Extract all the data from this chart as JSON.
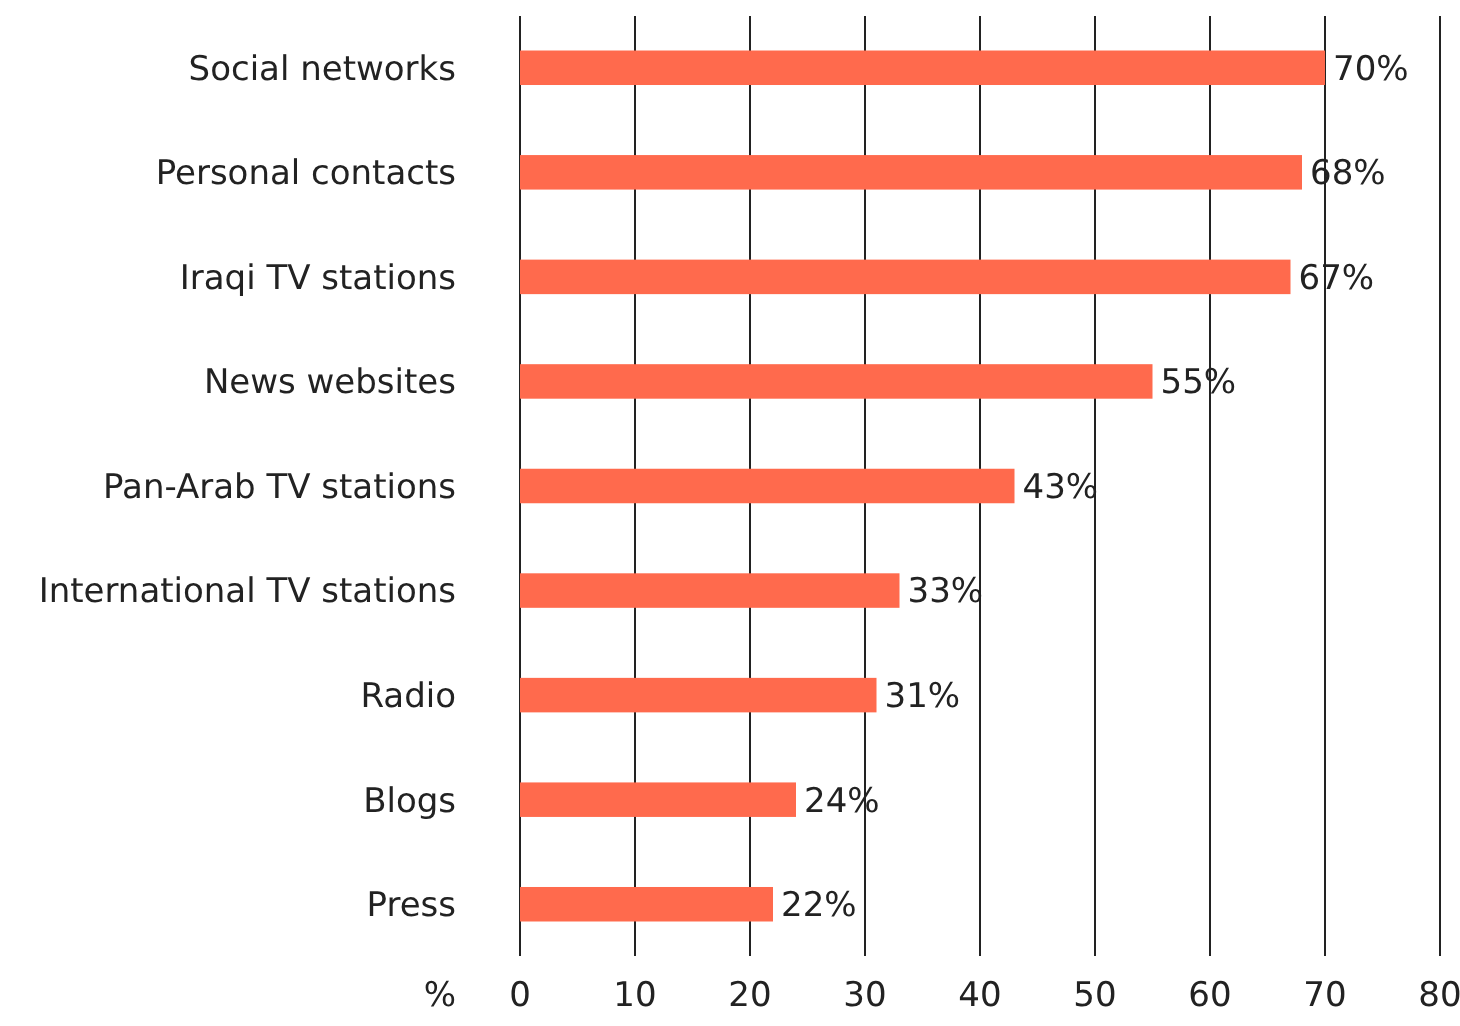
{
  "chart_data": {
    "type": "bar",
    "orientation": "horizontal",
    "xlabel": "%",
    "categories": [
      "Social networks",
      "Personal contacts",
      "Iraqi TV stations",
      "News websites",
      "Pan-Arab TV stations",
      "International TV stations",
      "Radio",
      "Blogs",
      "Press"
    ],
    "values": [
      70,
      68,
      67,
      55,
      43,
      33,
      31,
      24,
      22
    ],
    "value_labels": [
      "70%",
      "68%",
      "67%",
      "55%",
      "43%",
      "33%",
      "31%",
      "24%",
      "22%"
    ],
    "color": "#ff6a4d",
    "xlim": [
      0,
      80
    ],
    "xticks": [
      0,
      10,
      20,
      30,
      40,
      50,
      60,
      70,
      80
    ],
    "grid": "x"
  }
}
